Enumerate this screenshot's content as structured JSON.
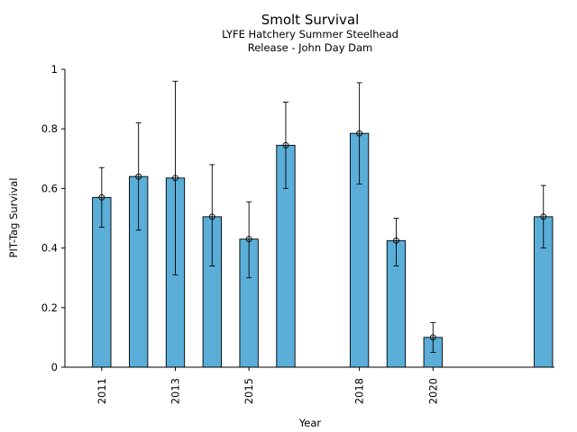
{
  "chart_data": {
    "type": "bar",
    "title": "Smolt Survival",
    "subtitle_line1": "LYFE Hatchery Summer Steelhead",
    "subtitle_line2": "Release - John Day Dam",
    "xlabel": "Year",
    "ylabel": "PIT-Tag Survival",
    "ylim": [
      0,
      1
    ],
    "xlim": [
      2010.0,
      2023.3
    ],
    "yticks": [
      0,
      0.2,
      0.4,
      0.6,
      0.8,
      1
    ],
    "ytick_labels": [
      "0",
      "0.2",
      "0.4",
      "0.6",
      "0.8",
      "1"
    ],
    "xticks": [
      2011,
      2013,
      2015,
      2018,
      2020
    ],
    "xtick_labels": [
      "2011",
      "2013",
      "2015",
      "2018",
      "2020"
    ],
    "bar_width_years": 0.5,
    "bar_color": "#5aaed8",
    "x": [
      2011,
      2012,
      2013,
      2014,
      2015,
      2016,
      2018,
      2019,
      2020,
      2023
    ],
    "values": [
      0.57,
      0.64,
      0.635,
      0.505,
      0.43,
      0.745,
      0.785,
      0.425,
      0.1,
      0.505
    ],
    "error_low": [
      0.47,
      0.46,
      0.31,
      0.34,
      0.3,
      0.6,
      0.615,
      0.34,
      0.05,
      0.4
    ],
    "error_high": [
      0.67,
      0.82,
      0.96,
      0.68,
      0.555,
      0.89,
      0.955,
      0.5,
      0.15,
      0.61
    ],
    "grid": false,
    "legend": "none"
  }
}
